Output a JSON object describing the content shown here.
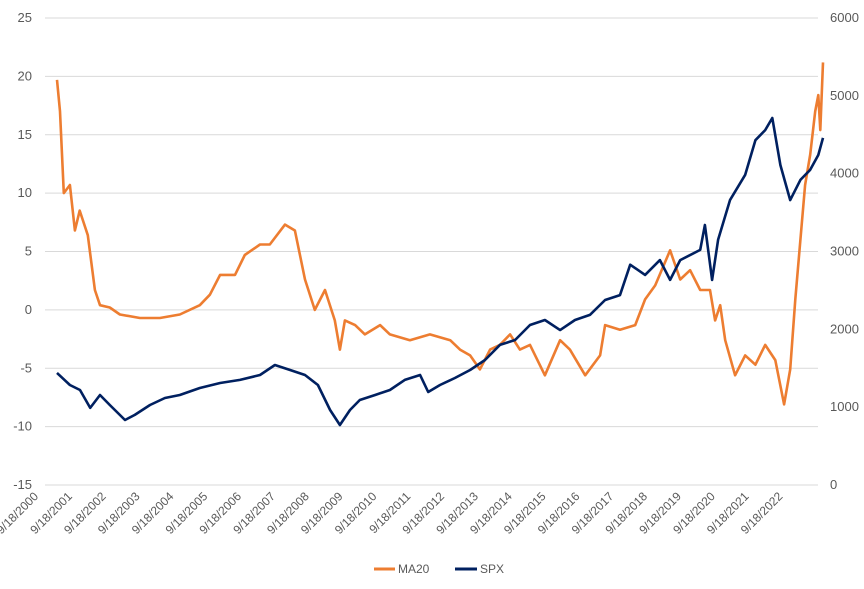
{
  "chart_data": {
    "type": "line",
    "title": "",
    "legend_position": "bottom",
    "grid": true,
    "y_left": {
      "min": -15,
      "max": 25,
      "step": 5,
      "ticks": [
        "-15",
        "-10",
        "-5",
        "0",
        "5",
        "10",
        "15",
        "20",
        "25"
      ]
    },
    "y_right": {
      "min": 0,
      "max": 6000,
      "step": 1000,
      "ticks": [
        "0",
        "1000",
        "2000",
        "3000",
        "4000",
        "5000",
        "6000"
      ]
    },
    "x_range": [
      2000.72,
      2023.3
    ],
    "x_tick_labels": [
      "9/18/2000",
      "9/18/2001",
      "9/18/2002",
      "9/18/2003",
      "9/18/2004",
      "9/18/2005",
      "9/18/2006",
      "9/18/2007",
      "9/18/2008",
      "9/18/2009",
      "9/18/2010",
      "9/18/2011",
      "9/18/2012",
      "9/18/2013",
      "9/18/2014",
      "9/18/2015",
      "9/18/2016",
      "9/18/2017",
      "9/18/2018",
      "9/18/2019",
      "9/18/2020",
      "9/18/2021",
      "9/18/2022"
    ],
    "series": [
      {
        "name": "MA20",
        "axis": "left",
        "color": "#ED7D31",
        "points": [
          [
            2000.72,
            19.7
          ],
          [
            2000.81,
            17
          ],
          [
            2000.92,
            10
          ],
          [
            2001.1,
            10.7
          ],
          [
            2001.25,
            6.8
          ],
          [
            2001.39,
            8.5
          ],
          [
            2001.63,
            6.4
          ],
          [
            2001.84,
            1.7
          ],
          [
            2001.99,
            0.4
          ],
          [
            2002.28,
            0.2
          ],
          [
            2002.58,
            -0.4
          ],
          [
            2003.17,
            -0.7
          ],
          [
            2003.76,
            -0.7
          ],
          [
            2004.35,
            -0.4
          ],
          [
            2004.94,
            0.4
          ],
          [
            2005.24,
            1.3
          ],
          [
            2005.54,
            3
          ],
          [
            2005.98,
            3
          ],
          [
            2006.27,
            4.7
          ],
          [
            2006.72,
            5.6
          ],
          [
            2007.01,
            5.6
          ],
          [
            2007.46,
            7.3
          ],
          [
            2007.75,
            6.8
          ],
          [
            2008.05,
            2.6
          ],
          [
            2008.34,
            0
          ],
          [
            2008.64,
            1.7
          ],
          [
            2008.93,
            -0.9
          ],
          [
            2009.08,
            -3.4
          ],
          [
            2009.23,
            -0.9
          ],
          [
            2009.53,
            -1.3
          ],
          [
            2009.82,
            -2.1
          ],
          [
            2010.27,
            -1.3
          ],
          [
            2010.56,
            -2.1
          ],
          [
            2011.15,
            -2.6
          ],
          [
            2011.74,
            -2.1
          ],
          [
            2012.34,
            -2.6
          ],
          [
            2012.63,
            -3.4
          ],
          [
            2012.93,
            -3.9
          ],
          [
            2013.22,
            -5.1
          ],
          [
            2013.52,
            -3.4
          ],
          [
            2013.81,
            -3
          ],
          [
            2014.11,
            -2.1
          ],
          [
            2014.4,
            -3.4
          ],
          [
            2014.7,
            -3
          ],
          [
            2015.14,
            -5.6
          ],
          [
            2015.59,
            -2.6
          ],
          [
            2015.88,
            -3.4
          ],
          [
            2016.33,
            -5.6
          ],
          [
            2016.77,
            -3.9
          ],
          [
            2016.92,
            -1.3
          ],
          [
            2017.36,
            -1.7
          ],
          [
            2017.81,
            -1.3
          ],
          [
            2018.1,
            0.9
          ],
          [
            2018.4,
            2.1
          ],
          [
            2018.84,
            5.1
          ],
          [
            2019.14,
            2.6
          ],
          [
            2019.43,
            3.4
          ],
          [
            2019.73,
            1.7
          ],
          [
            2020.02,
            1.7
          ],
          [
            2020.17,
            -0.9
          ],
          [
            2020.32,
            0.4
          ],
          [
            2020.47,
            -2.6
          ],
          [
            2020.76,
            -5.6
          ],
          [
            2021.06,
            -3.9
          ],
          [
            2021.36,
            -4.7
          ],
          [
            2021.65,
            -3
          ],
          [
            2021.95,
            -4.3
          ],
          [
            2022.21,
            -8.1
          ],
          [
            2022.39,
            -5.1
          ],
          [
            2022.54,
            0.9
          ],
          [
            2022.69,
            6
          ],
          [
            2022.83,
            10.7
          ],
          [
            2022.98,
            13.3
          ],
          [
            2023.13,
            17
          ],
          [
            2023.22,
            18.4
          ],
          [
            2023.28,
            15.4
          ],
          [
            2023.36,
            21.2
          ]
        ]
      },
      {
        "name": "SPX",
        "axis": "right",
        "color": "#002060",
        "points": [
          [
            2000.72,
            1440
          ],
          [
            2001.1,
            1285
          ],
          [
            2001.4,
            1220
          ],
          [
            2001.7,
            990
          ],
          [
            2001.99,
            1156
          ],
          [
            2002.28,
            1028
          ],
          [
            2002.73,
            835
          ],
          [
            2003.02,
            900
          ],
          [
            2003.47,
            1028
          ],
          [
            2003.91,
            1118
          ],
          [
            2004.35,
            1156
          ],
          [
            2004.94,
            1246
          ],
          [
            2005.54,
            1310
          ],
          [
            2006.13,
            1350
          ],
          [
            2006.72,
            1413
          ],
          [
            2007.16,
            1542
          ],
          [
            2007.61,
            1478
          ],
          [
            2008.05,
            1413
          ],
          [
            2008.43,
            1285
          ],
          [
            2008.79,
            964
          ],
          [
            2009.08,
            771
          ],
          [
            2009.38,
            964
          ],
          [
            2009.67,
            1092
          ],
          [
            2010.12,
            1156
          ],
          [
            2010.56,
            1220
          ],
          [
            2011.0,
            1350
          ],
          [
            2011.45,
            1413
          ],
          [
            2011.69,
            1195
          ],
          [
            2012.04,
            1285
          ],
          [
            2012.48,
            1375
          ],
          [
            2012.93,
            1478
          ],
          [
            2013.37,
            1606
          ],
          [
            2013.81,
            1800
          ],
          [
            2014.26,
            1863
          ],
          [
            2014.7,
            2056
          ],
          [
            2015.14,
            2120
          ],
          [
            2015.59,
            1990
          ],
          [
            2016.03,
            2120
          ],
          [
            2016.47,
            2185
          ],
          [
            2016.92,
            2377
          ],
          [
            2017.36,
            2440
          ],
          [
            2017.66,
            2830
          ],
          [
            2018.1,
            2700
          ],
          [
            2018.54,
            2890
          ],
          [
            2018.84,
            2635
          ],
          [
            2019.14,
            2890
          ],
          [
            2019.73,
            3020
          ],
          [
            2019.87,
            3340
          ],
          [
            2020.08,
            2635
          ],
          [
            2020.26,
            3150
          ],
          [
            2020.61,
            3660
          ],
          [
            2021.06,
            3985
          ],
          [
            2021.36,
            4430
          ],
          [
            2021.65,
            4560
          ],
          [
            2021.86,
            4715
          ],
          [
            2022.1,
            4110
          ],
          [
            2022.39,
            3660
          ],
          [
            2022.69,
            3920
          ],
          [
            2022.98,
            4050
          ],
          [
            2023.22,
            4240
          ],
          [
            2023.36,
            4460
          ]
        ]
      }
    ]
  }
}
